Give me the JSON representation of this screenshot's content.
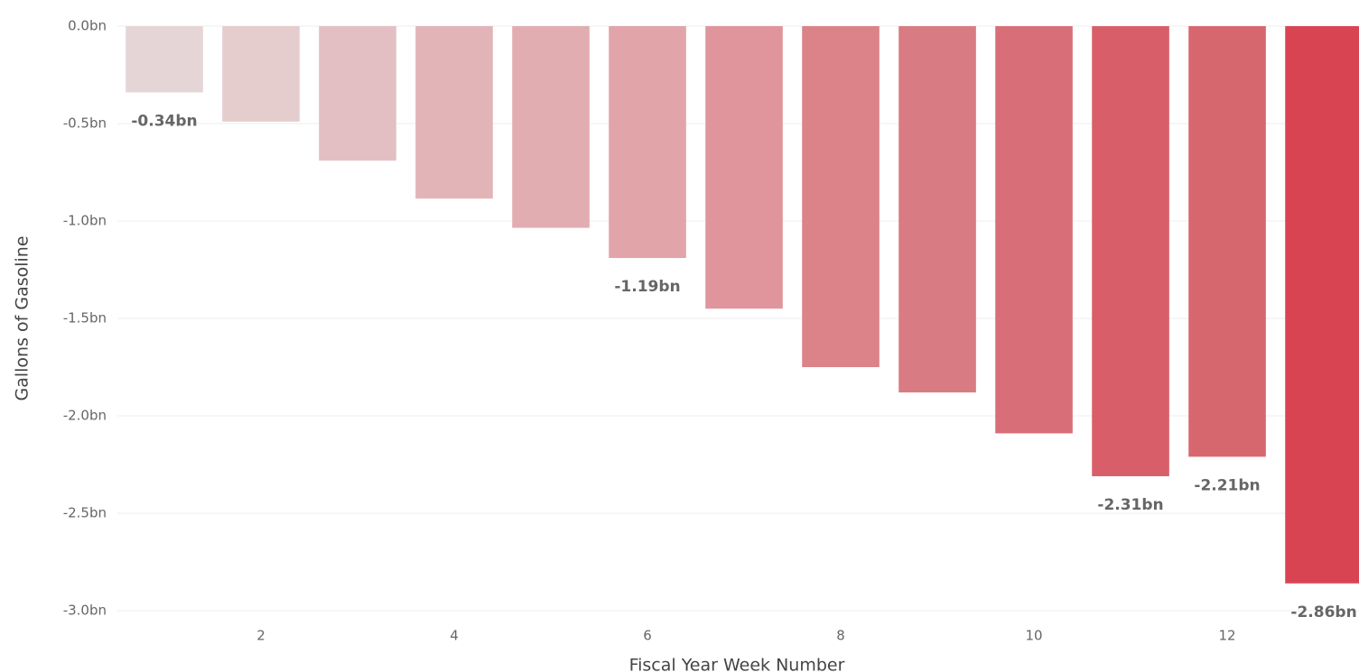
{
  "chart_data": {
    "type": "bar",
    "x_label": "Fiscal Year Week Number",
    "y_label": "Gallons of Gasoline",
    "x": [
      1,
      2,
      3,
      4,
      5,
      6,
      7,
      8,
      9,
      10,
      11,
      12,
      13
    ],
    "values": [
      -0.34,
      -0.49,
      -0.69,
      -0.885,
      -1.035,
      -1.19,
      -1.45,
      -1.75,
      -1.88,
      -2.09,
      -2.31,
      -2.21,
      -2.86
    ],
    "value_labels": [
      "-0.34bn",
      null,
      null,
      null,
      null,
      "-1.19bn",
      null,
      null,
      null,
      null,
      "-2.31bn",
      "-2.21bn",
      "-2.86bn"
    ],
    "colors": [
      "#e5d5d7",
      "#e5cdce",
      "#e3bfc3",
      "#e2b4b8",
      "#e1adb1",
      "#e0a4a9",
      "#df959b",
      "#db8388",
      "#d97b82",
      "#d86e78",
      "#d85f6a",
      "#d7676e",
      "#d94452"
    ],
    "xlim": [
      0.514,
      13.364
    ],
    "xticks": [
      2,
      4,
      6,
      8,
      10,
      12
    ],
    "ylim": [
      -3.0,
      0.0
    ],
    "yticks": [
      {
        "value": 0.0,
        "label": "0.0bn"
      },
      {
        "value": -0.5,
        "label": "-0.5bn"
      },
      {
        "value": -1.0,
        "label": "-1.0bn"
      },
      {
        "value": -1.5,
        "label": "-1.5bn"
      },
      {
        "value": -2.0,
        "label": "-2.0bn"
      },
      {
        "value": -2.5,
        "label": "-2.5bn"
      },
      {
        "value": -3.0,
        "label": "-3.0bn"
      }
    ],
    "grid": true
  }
}
